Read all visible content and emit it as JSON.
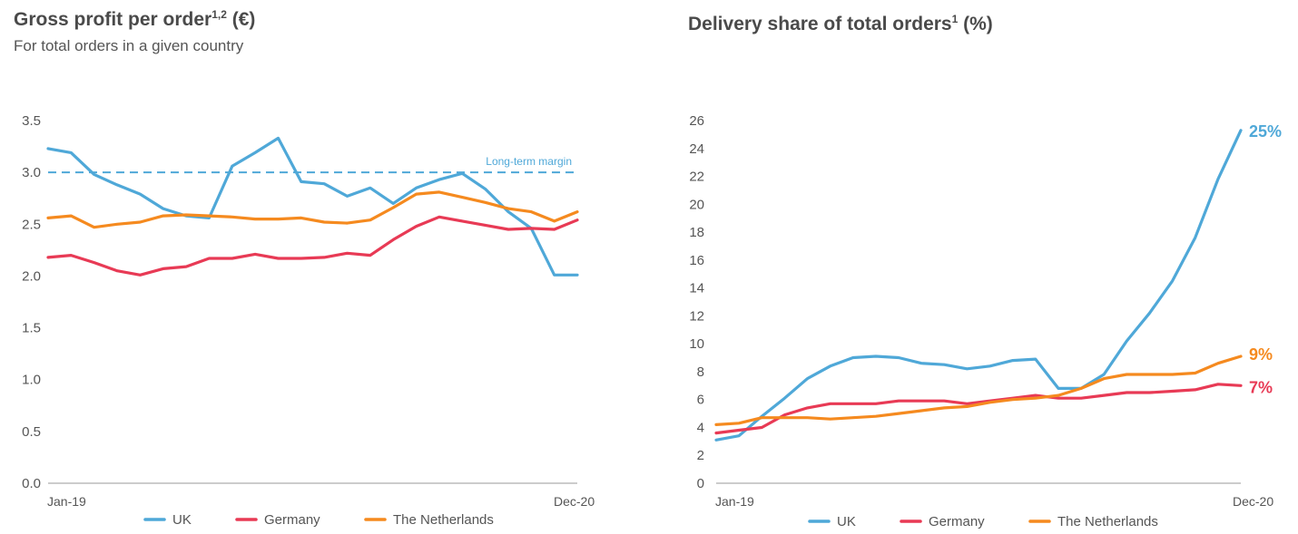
{
  "colors": {
    "uk": "#4fa8d8",
    "germany": "#e83a55",
    "netherlands": "#f58a1f",
    "axis": "#999999",
    "text": "#555555"
  },
  "chart_data": [
    {
      "type": "line",
      "title": "Gross profit per order",
      "title_sup": "1,2",
      "title_suffix": " (€)",
      "subtitle": "For total orders in a given country",
      "xlabel": "",
      "ylabel": "",
      "x_tick_labels": [
        "Jan-19",
        "Dec-20"
      ],
      "ylim": [
        0,
        3.5
      ],
      "y_ticks": [
        "0.0",
        "0.5",
        "1.0",
        "1.5",
        "2.0",
        "2.5",
        "3.0",
        "3.5"
      ],
      "grid": false,
      "legend_position": "bottom",
      "series": [
        {
          "name": "UK",
          "color": "#4fa8d8",
          "values": [
            3.23,
            3.19,
            2.98,
            2.88,
            2.79,
            2.65,
            2.58,
            2.56,
            3.06,
            3.19,
            3.33,
            2.91,
            2.89,
            2.77,
            2.85,
            2.7,
            2.85,
            2.93,
            2.99,
            2.84,
            2.62,
            2.46,
            2.01,
            2.01
          ]
        },
        {
          "name": "Germany",
          "color": "#e83a55",
          "values": [
            2.18,
            2.2,
            2.13,
            2.05,
            2.01,
            2.07,
            2.09,
            2.17,
            2.17,
            2.21,
            2.17,
            2.17,
            2.18,
            2.22,
            2.2,
            2.35,
            2.48,
            2.57,
            2.53,
            2.49,
            2.45,
            2.46,
            2.45,
            2.54
          ]
        },
        {
          "name": "The Netherlands",
          "color": "#f58a1f",
          "values": [
            2.56,
            2.58,
            2.47,
            2.5,
            2.52,
            2.58,
            2.59,
            2.58,
            2.57,
            2.55,
            2.55,
            2.56,
            2.52,
            2.51,
            2.54,
            2.66,
            2.79,
            2.81,
            2.76,
            2.71,
            2.65,
            2.62,
            2.53,
            2.62
          ]
        }
      ],
      "reference_line": {
        "label": "Long-term margin",
        "value": 3.0,
        "color": "#4fa8d8"
      }
    },
    {
      "type": "line",
      "title": "Delivery share of total orders",
      "title_sup": "1",
      "title_suffix": " (%)",
      "xlabel": "",
      "ylabel": "",
      "x_tick_labels": [
        "Jan-19",
        "Dec-20"
      ],
      "ylim": [
        0,
        26
      ],
      "y_ticks": [
        "0",
        "2",
        "4",
        "6",
        "8",
        "10",
        "12",
        "14",
        "16",
        "18",
        "20",
        "22",
        "24",
        "26"
      ],
      "grid": false,
      "legend_position": "bottom",
      "series": [
        {
          "name": "UK",
          "color": "#4fa8d8",
          "end_label": "25%",
          "values": [
            3.1,
            3.4,
            4.8,
            6.1,
            7.5,
            8.4,
            9.0,
            9.1,
            9.0,
            8.6,
            8.5,
            8.2,
            8.4,
            8.8,
            8.9,
            6.8,
            6.8,
            7.8,
            10.2,
            12.2,
            14.5,
            17.6,
            21.8,
            25.3
          ]
        },
        {
          "name": "Germany",
          "color": "#e83a55",
          "end_label": "7%",
          "values": [
            3.6,
            3.8,
            4.0,
            4.9,
            5.4,
            5.7,
            5.7,
            5.7,
            5.9,
            5.9,
            5.9,
            5.7,
            5.9,
            6.1,
            6.3,
            6.1,
            6.1,
            6.3,
            6.5,
            6.5,
            6.6,
            6.7,
            7.1,
            7.0
          ]
        },
        {
          "name": "The Netherlands",
          "color": "#f58a1f",
          "end_label": "9%",
          "values": [
            4.2,
            4.3,
            4.7,
            4.7,
            4.7,
            4.6,
            4.7,
            4.8,
            5.0,
            5.2,
            5.4,
            5.5,
            5.8,
            6.0,
            6.1,
            6.3,
            6.8,
            7.5,
            7.8,
            7.8,
            7.8,
            7.9,
            8.6,
            9.1
          ]
        }
      ]
    }
  ]
}
